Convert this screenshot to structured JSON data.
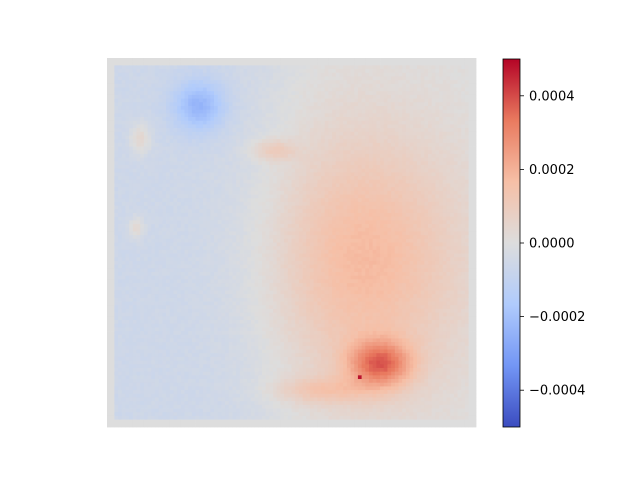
{
  "chart_data": {
    "type": "heatmap",
    "title": "",
    "xlabel": "",
    "ylabel": "",
    "axes_visible": false,
    "colormap": "coolwarm",
    "colormap_stops": [
      "#3b4cc0",
      "#7396f5",
      "#b0cbfc",
      "#dddddd",
      "#f6bfa6",
      "#e97a5f",
      "#b40426"
    ],
    "color_range": [
      -0.0005,
      0.0005
    ],
    "grid_size": [
      100,
      100
    ],
    "colorbar": {
      "position": "right",
      "ticks": [
        {
          "value": 0.0004,
          "label": "0.0004"
        },
        {
          "value": 0.0002,
          "label": "0.0002"
        },
        {
          "value": 0.0,
          "label": "0.0000"
        },
        {
          "value": -0.0002,
          "label": "−0.0002"
        },
        {
          "value": -0.0004,
          "label": "−0.0004"
        }
      ]
    },
    "regions": [
      {
        "feature": "right-center warm region",
        "value": 0.00018
      },
      {
        "feature": "lower-right hotspot",
        "value": 0.00036
      },
      {
        "feature": "peak pixel near lower-right",
        "value": 0.00048
      },
      {
        "feature": "left-half cool region",
        "value": -6e-05
      },
      {
        "feature": "top-left cool patch",
        "value": -0.00018
      },
      {
        "feature": "boundary frame",
        "value": 0.0
      }
    ]
  }
}
